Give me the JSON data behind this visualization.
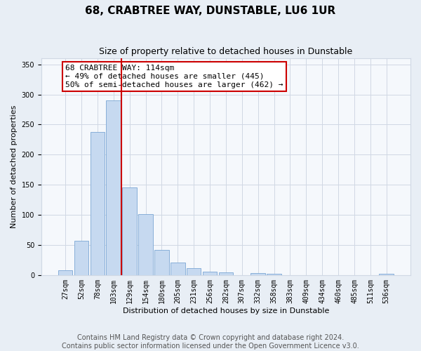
{
  "title": "68, CRABTREE WAY, DUNSTABLE, LU6 1UR",
  "subtitle": "Size of property relative to detached houses in Dunstable",
  "xlabel": "Distribution of detached houses by size in Dunstable",
  "ylabel": "Number of detached properties",
  "bar_labels": [
    "27sqm",
    "52sqm",
    "78sqm",
    "103sqm",
    "129sqm",
    "154sqm",
    "180sqm",
    "205sqm",
    "231sqm",
    "256sqm",
    "282sqm",
    "307sqm",
    "332sqm",
    "358sqm",
    "383sqm",
    "409sqm",
    "434sqm",
    "460sqm",
    "485sqm",
    "511sqm",
    "536sqm"
  ],
  "bar_values": [
    8,
    57,
    238,
    290,
    145,
    101,
    42,
    21,
    12,
    6,
    4,
    0,
    3,
    2,
    0,
    0,
    0,
    0,
    0,
    0,
    2
  ],
  "bar_color": "#c6d9f0",
  "bar_edge_color": "#7aa6d4",
  "vline_x_index": 3,
  "vline_color": "#cc0000",
  "annotation_text": "68 CRABTREE WAY: 114sqm\n← 49% of detached houses are smaller (445)\n50% of semi-detached houses are larger (462) →",
  "annotation_box_edgecolor": "#cc0000",
  "ylim": [
    0,
    360
  ],
  "yticks": [
    0,
    50,
    100,
    150,
    200,
    250,
    300,
    350
  ],
  "footer_line1": "Contains HM Land Registry data © Crown copyright and database right 2024.",
  "footer_line2": "Contains public sector information licensed under the Open Government Licence v3.0.",
  "bg_color": "#e8eef5",
  "plot_bg_color": "#f5f8fc",
  "grid_color": "#d0d8e4",
  "title_fontsize": 11,
  "subtitle_fontsize": 9,
  "axis_label_fontsize": 8,
  "tick_fontsize": 7,
  "footer_fontsize": 7,
  "annotation_fontsize": 8
}
